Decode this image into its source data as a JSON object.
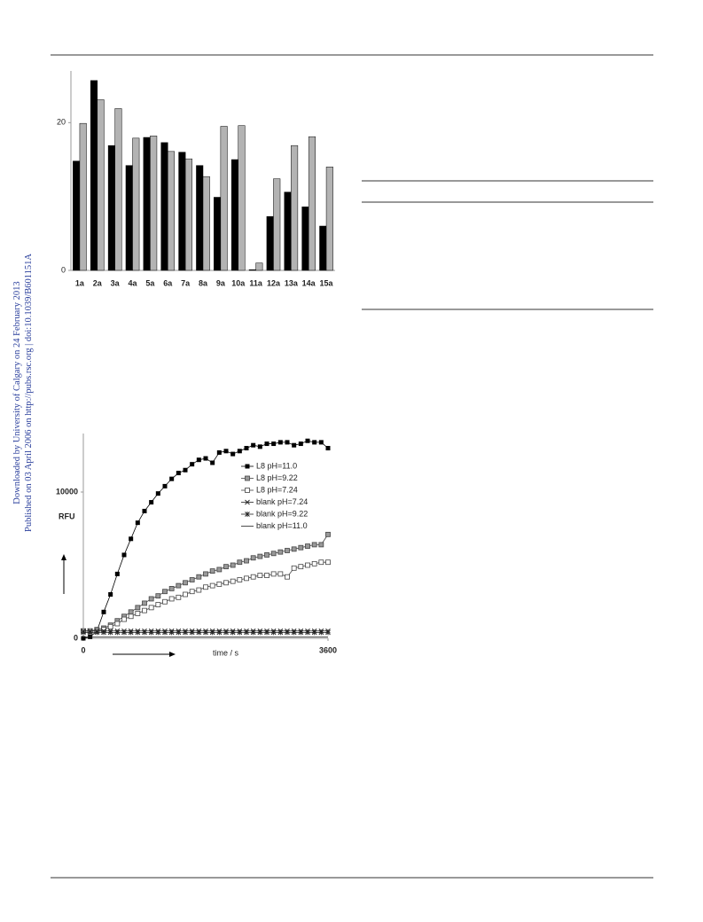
{
  "sidebar": {
    "downloaded": "Downloaded by University of Calgary on 24 February 2013",
    "published": "Published on 03 April 2006 on http://pubs.rsc.org | doi:10.1039/B601151A"
  },
  "chart_data": [
    {
      "type": "bar",
      "categories": [
        "1a",
        "2a",
        "3a",
        "4a",
        "5a",
        "6a",
        "7a",
        "8a",
        "9a",
        "10a",
        "11a",
        "12a",
        "13a",
        "14a",
        "15a"
      ],
      "series": [
        {
          "color": "#000000",
          "values": [
            14.8,
            25.7,
            16.9,
            14.2,
            18.0,
            17.3,
            16.0,
            14.2,
            9.9,
            15.0,
            0.1,
            7.3,
            10.6,
            8.6,
            6.0
          ]
        },
        {
          "color": "#b3b3b3",
          "values": [
            19.9,
            23.1,
            21.9,
            17.9,
            18.2,
            16.1,
            15.1,
            12.7,
            19.5,
            19.6,
            1.0,
            12.4,
            16.9,
            18.1,
            14.0
          ]
        }
      ],
      "ylim": [
        0,
        27
      ],
      "yticks": [
        0,
        20
      ]
    },
    {
      "type": "line",
      "ylabel": "RFU",
      "xlabel": "time / s",
      "x": [
        0,
        100,
        200,
        300,
        400,
        500,
        600,
        700,
        800,
        900,
        1000,
        1100,
        1200,
        1300,
        1400,
        1500,
        1600,
        1700,
        1800,
        1900,
        2000,
        2100,
        2200,
        2300,
        2400,
        2500,
        2600,
        2700,
        2800,
        2900,
        3000,
        3100,
        3200,
        3300,
        3400,
        3500,
        3600
      ],
      "series": [
        {
          "name": "L8 pH=11.0",
          "color": "#000000",
          "marker": "filled-square",
          "values": [
            0,
            100,
            500,
            1800,
            3000,
            4400,
            5700,
            6800,
            7900,
            8700,
            9300,
            9900,
            10400,
            10900,
            11300,
            11500,
            11900,
            12200,
            12300,
            12000,
            12700,
            12800,
            12600,
            12800,
            13000,
            13200,
            13100,
            13300,
            13300,
            13400,
            13400,
            13200,
            13300,
            13500,
            13400,
            13400,
            13000
          ]
        },
        {
          "name": "L8 pH=9.22",
          "color": "#444444",
          "marker": "half-square",
          "values": [
            500,
            500,
            600,
            700,
            900,
            1200,
            1500,
            1800,
            2100,
            2400,
            2700,
            2900,
            3200,
            3400,
            3600,
            3800,
            4000,
            4200,
            4400,
            4600,
            4700,
            4900,
            5000,
            5200,
            5300,
            5500,
            5600,
            5700,
            5800,
            5900,
            6000,
            6100,
            6200,
            6300,
            6400,
            6400,
            7100
          ]
        },
        {
          "name": "L8 pH=7.24",
          "color": "#444444",
          "marker": "open-square",
          "values": [
            500,
            500,
            500,
            600,
            800,
            1000,
            1300,
            1500,
            1700,
            1900,
            2100,
            2300,
            2500,
            2700,
            2800,
            3000,
            3200,
            3300,
            3500,
            3600,
            3700,
            3800,
            3900,
            4000,
            4100,
            4200,
            4300,
            4300,
            4400,
            4400,
            4200,
            4800,
            4900,
            5000,
            5100,
            5200,
            5200
          ]
        },
        {
          "name": "blank pH=7.24",
          "color": "#222222",
          "marker": "cross",
          "values": [
            500,
            500,
            500,
            500,
            500,
            500,
            500,
            500,
            500,
            500,
            500,
            500,
            500,
            500,
            500,
            500,
            500,
            500,
            500,
            500,
            500,
            500,
            500,
            500,
            500,
            500,
            500,
            500,
            500,
            500,
            500,
            500,
            500,
            500,
            500,
            500,
            500
          ]
        },
        {
          "name": "blank pH=9.22",
          "color": "#222222",
          "marker": "star",
          "values": [
            400,
            400,
            400,
            400,
            400,
            400,
            400,
            400,
            400,
            400,
            400,
            400,
            400,
            400,
            400,
            400,
            400,
            400,
            400,
            400,
            400,
            400,
            400,
            400,
            400,
            400,
            400,
            400,
            400,
            400,
            400,
            400,
            400,
            400,
            400,
            400,
            400
          ]
        },
        {
          "name": "blank pH=11.0",
          "color": "#222222",
          "marker": "none",
          "values": [
            100,
            100,
            100,
            100,
            100,
            100,
            100,
            100,
            100,
            100,
            100,
            100,
            100,
            100,
            100,
            100,
            100,
            100,
            100,
            100,
            100,
            100,
            100,
            100,
            100,
            100,
            100,
            100,
            100,
            100,
            100,
            100,
            100,
            100,
            100,
            100,
            100
          ]
        }
      ],
      "xlim": [
        0,
        3600
      ],
      "xticks": [
        0,
        3600
      ],
      "ylim": [
        0,
        14000
      ],
      "yticks": [
        0,
        10000
      ]
    }
  ]
}
